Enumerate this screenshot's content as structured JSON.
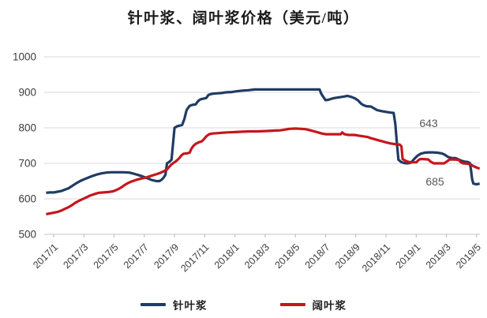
{
  "chart": {
    "title": "针叶浆、阔叶浆价格（美元/吨）",
    "series_labels": [
      "针叶浆",
      "阔叶浆"
    ]
  },
  "chart_data": {
    "type": "line",
    "title": "针叶浆、阔叶浆价格（美元/吨）",
    "ylabel": "价格（美元/吨）",
    "xlabel": "",
    "grid": "horizontal",
    "legend_position": "bottom",
    "y_axis": {
      "range": [
        500,
        1000
      ],
      "ticks": [
        500,
        600,
        700,
        800,
        900,
        1000
      ]
    },
    "x_axis": {
      "unit": "months_since_2017_01",
      "tick_labels": [
        "2017/1",
        "2017/3",
        "2017/5",
        "2017/7",
        "2017/9",
        "2017/11",
        "2018/1",
        "2018/3",
        "2018/5",
        "2018/7",
        "2018/9",
        "2018/11",
        "2019/1",
        "2019/3",
        "2019/5"
      ]
    },
    "annotations": [
      {
        "text": "643",
        "series": "针叶浆"
      },
      {
        "text": "685",
        "series": "阔叶浆"
      }
    ],
    "series": [
      {
        "name": "针叶浆",
        "color": "#1f3c64",
        "points": [
          [
            -0.5,
            617
          ],
          [
            -0.25,
            618
          ],
          [
            0,
            618
          ],
          [
            0.25,
            620
          ],
          [
            0.5,
            622
          ],
          [
            0.75,
            626
          ],
          [
            1,
            630
          ],
          [
            1.25,
            637
          ],
          [
            1.5,
            644
          ],
          [
            1.75,
            650
          ],
          [
            2,
            655
          ],
          [
            2.3,
            660
          ],
          [
            2.6,
            665
          ],
          [
            2.9,
            669
          ],
          [
            3.2,
            672
          ],
          [
            3.5,
            674
          ],
          [
            3.8,
            675
          ],
          [
            4.2,
            675
          ],
          [
            4.6,
            675
          ],
          [
            5,
            674
          ],
          [
            5.3,
            671
          ],
          [
            5.6,
            667
          ],
          [
            5.9,
            663
          ],
          [
            6.2,
            658
          ],
          [
            6.5,
            653
          ],
          [
            6.8,
            650
          ],
          [
            7,
            650
          ],
          [
            7.15,
            654
          ],
          [
            7.3,
            661
          ],
          [
            7.4,
            668
          ],
          [
            7.5,
            700
          ],
          [
            7.65,
            704
          ],
          [
            7.8,
            710
          ],
          [
            7.9,
            755
          ],
          [
            8,
            800
          ],
          [
            8.2,
            805
          ],
          [
            8.5,
            808
          ],
          [
            8.65,
            825
          ],
          [
            8.8,
            850
          ],
          [
            9,
            862
          ],
          [
            9.2,
            865
          ],
          [
            9.4,
            866
          ],
          [
            9.55,
            875
          ],
          [
            9.7,
            880
          ],
          [
            9.9,
            882
          ],
          [
            10.1,
            884
          ],
          [
            10.25,
            893
          ],
          [
            10.5,
            896
          ],
          [
            10.8,
            897
          ],
          [
            11.1,
            898
          ],
          [
            11.4,
            900
          ],
          [
            11.8,
            901
          ],
          [
            12.1,
            903
          ],
          [
            12.5,
            905
          ],
          [
            12.9,
            906
          ],
          [
            13.3,
            908
          ],
          [
            14,
            908
          ],
          [
            15,
            908
          ],
          [
            16,
            908
          ],
          [
            17,
            908
          ],
          [
            17.6,
            908
          ],
          [
            17.7,
            897
          ],
          [
            17.8,
            890
          ],
          [
            18,
            878
          ],
          [
            18.2,
            879
          ],
          [
            18.4,
            882
          ],
          [
            18.6,
            884
          ],
          [
            18.9,
            886
          ],
          [
            19.2,
            888
          ],
          [
            19.45,
            890
          ],
          [
            19.7,
            887
          ],
          [
            19.95,
            883
          ],
          [
            20.15,
            877
          ],
          [
            20.35,
            868
          ],
          [
            20.5,
            864
          ],
          [
            20.7,
            861
          ],
          [
            21,
            860
          ],
          [
            21.2,
            855
          ],
          [
            21.4,
            850
          ],
          [
            21.7,
            847
          ],
          [
            22,
            845
          ],
          [
            22.3,
            843
          ],
          [
            22.5,
            842
          ],
          [
            22.62,
            810
          ],
          [
            22.72,
            755
          ],
          [
            22.82,
            710
          ],
          [
            23,
            704
          ],
          [
            23.2,
            701
          ],
          [
            23.45,
            700
          ],
          [
            23.65,
            702
          ],
          [
            23.8,
            709
          ],
          [
            23.95,
            716
          ],
          [
            24.1,
            722
          ],
          [
            24.3,
            727
          ],
          [
            24.55,
            730
          ],
          [
            24.8,
            731
          ],
          [
            25.1,
            731
          ],
          [
            25.4,
            730
          ],
          [
            25.7,
            728
          ],
          [
            25.9,
            724
          ],
          [
            26.1,
            718
          ],
          [
            26.35,
            715
          ],
          [
            26.6,
            715
          ],
          [
            26.8,
            711
          ],
          [
            27,
            707
          ],
          [
            27.2,
            705
          ],
          [
            27.4,
            704
          ],
          [
            27.55,
            701
          ],
          [
            27.63,
            680
          ],
          [
            27.7,
            655
          ],
          [
            27.78,
            643
          ],
          [
            28,
            641
          ],
          [
            28.2,
            643
          ]
        ]
      },
      {
        "name": "阔叶浆",
        "color": "#c5161d",
        "points": [
          [
            -0.5,
            557
          ],
          [
            -0.25,
            559
          ],
          [
            0,
            561
          ],
          [
            0.25,
            563
          ],
          [
            0.5,
            567
          ],
          [
            0.75,
            572
          ],
          [
            1,
            577
          ],
          [
            1.2,
            582
          ],
          [
            1.4,
            588
          ],
          [
            1.6,
            593
          ],
          [
            1.8,
            597
          ],
          [
            2,
            601
          ],
          [
            2.2,
            605
          ],
          [
            2.4,
            609
          ],
          [
            2.6,
            612
          ],
          [
            2.8,
            615
          ],
          [
            3,
            617
          ],
          [
            3.3,
            618
          ],
          [
            3.6,
            619
          ],
          [
            3.9,
            621
          ],
          [
            4.1,
            624
          ],
          [
            4.3,
            628
          ],
          [
            4.5,
            633
          ],
          [
            4.7,
            639
          ],
          [
            4.9,
            644
          ],
          [
            5.1,
            648
          ],
          [
            5.3,
            651
          ],
          [
            5.5,
            654
          ],
          [
            5.8,
            657
          ],
          [
            6.1,
            660
          ],
          [
            6.4,
            664
          ],
          [
            6.7,
            668
          ],
          [
            6.9,
            671
          ],
          [
            7.1,
            674
          ],
          [
            7.3,
            678
          ],
          [
            7.5,
            683
          ],
          [
            7.65,
            690
          ],
          [
            7.8,
            697
          ],
          [
            7.95,
            702
          ],
          [
            8.1,
            706
          ],
          [
            8.3,
            714
          ],
          [
            8.45,
            722
          ],
          [
            8.6,
            727
          ],
          [
            8.8,
            728
          ],
          [
            9,
            730
          ],
          [
            9.1,
            740
          ],
          [
            9.25,
            749
          ],
          [
            9.4,
            755
          ],
          [
            9.6,
            759
          ],
          [
            9.8,
            762
          ],
          [
            9.95,
            768
          ],
          [
            10.1,
            776
          ],
          [
            10.3,
            782
          ],
          [
            10.5,
            784
          ],
          [
            10.8,
            785
          ],
          [
            11.1,
            786
          ],
          [
            11.5,
            787
          ],
          [
            12,
            788
          ],
          [
            12.5,
            789
          ],
          [
            13,
            790
          ],
          [
            13.5,
            790
          ],
          [
            14,
            791
          ],
          [
            14.5,
            792
          ],
          [
            15,
            793
          ],
          [
            15.3,
            795
          ],
          [
            15.6,
            797
          ],
          [
            16,
            798
          ],
          [
            16.4,
            797
          ],
          [
            16.7,
            796
          ],
          [
            17,
            793
          ],
          [
            17.25,
            790
          ],
          [
            17.5,
            787
          ],
          [
            17.75,
            784
          ],
          [
            18,
            782
          ],
          [
            18.4,
            782
          ],
          [
            18.8,
            782
          ],
          [
            19,
            782
          ],
          [
            19.1,
            787
          ],
          [
            19.25,
            782
          ],
          [
            19.5,
            780
          ],
          [
            19.9,
            780
          ],
          [
            20.2,
            778
          ],
          [
            20.5,
            776
          ],
          [
            20.8,
            774
          ],
          [
            21,
            771
          ],
          [
            21.25,
            768
          ],
          [
            21.5,
            765
          ],
          [
            21.75,
            762
          ],
          [
            22,
            759
          ],
          [
            22.3,
            756
          ],
          [
            22.6,
            754
          ],
          [
            22.9,
            753
          ],
          [
            23.02,
            748
          ],
          [
            23.1,
            712
          ],
          [
            23.3,
            707
          ],
          [
            23.5,
            704
          ],
          [
            23.8,
            703
          ],
          [
            24,
            703
          ],
          [
            24.12,
            708
          ],
          [
            24.25,
            712
          ],
          [
            24.5,
            712
          ],
          [
            24.8,
            711
          ],
          [
            24.95,
            705
          ],
          [
            25.15,
            700
          ],
          [
            25.5,
            700
          ],
          [
            25.85,
            700
          ],
          [
            26.05,
            706
          ],
          [
            26.2,
            711
          ],
          [
            26.5,
            711
          ],
          [
            26.8,
            710
          ],
          [
            26.95,
            703
          ],
          [
            27.1,
            700
          ],
          [
            27.35,
            699
          ],
          [
            27.6,
            697
          ],
          [
            27.75,
            693
          ],
          [
            27.9,
            690
          ],
          [
            28.05,
            687
          ],
          [
            28.2,
            685
          ]
        ]
      }
    ]
  }
}
